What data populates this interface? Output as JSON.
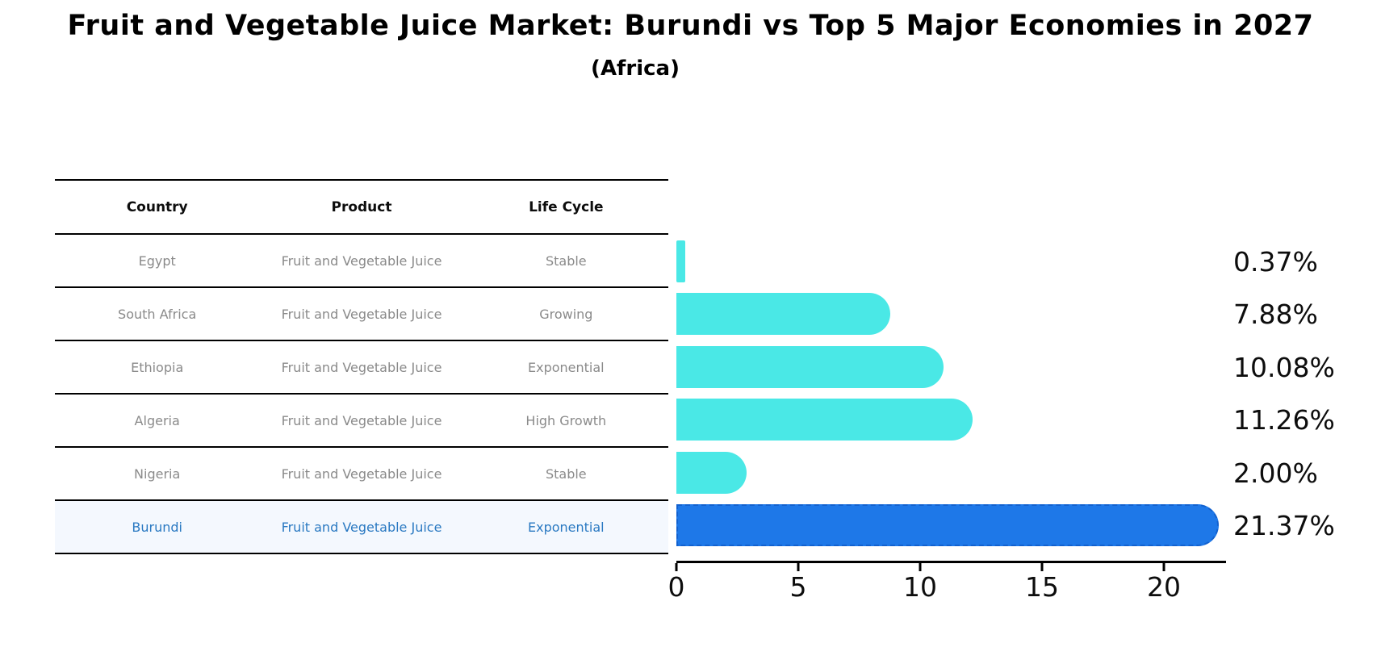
{
  "title": "Fruit and Vegetable Juice Market: Burundi vs Top 5 Major Economies in 2027",
  "subtitle": "(Africa)",
  "table": {
    "headers": [
      "Country",
      "Product",
      "Life Cycle"
    ],
    "rows": [
      {
        "country": "Egypt",
        "product": "Fruit and Vegetable Juice",
        "life_cycle": "Stable"
      },
      {
        "country": "South Africa",
        "product": "Fruit and Vegetable Juice",
        "life_cycle": "Growing"
      },
      {
        "country": "Ethiopia",
        "product": "Fruit and Vegetable Juice",
        "life_cycle": "Exponential"
      },
      {
        "country": "Algeria",
        "product": "Fruit and Vegetable Juice",
        "life_cycle": "High Growth"
      },
      {
        "country": "Nigeria",
        "product": "Fruit and Vegetable Juice",
        "life_cycle": "Stable"
      },
      {
        "country": "Burundi",
        "product": "Fruit and Vegetable Juice",
        "life_cycle": "Exponential"
      }
    ],
    "highlight_row_index": 5
  },
  "chart_data": {
    "type": "bar",
    "orientation": "horizontal",
    "categories": [
      "Egypt",
      "South Africa",
      "Ethiopia",
      "Algeria",
      "Nigeria",
      "Burundi"
    ],
    "values": [
      0.37,
      7.88,
      10.08,
      11.26,
      2.0,
      21.37
    ],
    "value_labels": [
      "0.37%",
      "7.88%",
      "10.08%",
      "11.26%",
      "2.00%",
      "21.37%"
    ],
    "xticks": [
      0,
      5,
      10,
      15,
      20
    ],
    "xlim": [
      0,
      22.5
    ],
    "grid": false,
    "legend": "none",
    "bar_color": "#4ae8e6",
    "highlight_bar_color": "#1e78e8",
    "highlight_bar_border_color": "#1261cf",
    "highlight_index": 5,
    "highlight_text_color": "#2a79c2",
    "value_label_color": "#0d0d0d"
  }
}
